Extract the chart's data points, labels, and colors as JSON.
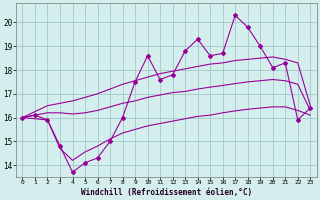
{
  "x": [
    0,
    1,
    2,
    3,
    4,
    5,
    6,
    7,
    8,
    9,
    10,
    11,
    12,
    13,
    14,
    15,
    16,
    17,
    18,
    19,
    20,
    21,
    22,
    23
  ],
  "line_main": [
    16.0,
    16.1,
    15.9,
    14.8,
    13.7,
    14.1,
    14.3,
    15.0,
    16.0,
    17.5,
    18.6,
    17.6,
    17.8,
    18.8,
    19.3,
    18.6,
    18.7,
    20.3,
    19.8,
    19.0,
    18.1,
    18.3,
    15.9,
    16.4
  ],
  "line_upper": [
    16.0,
    16.25,
    16.5,
    16.6,
    16.7,
    16.85,
    17.0,
    17.2,
    17.4,
    17.55,
    17.7,
    17.85,
    17.95,
    18.05,
    18.15,
    18.25,
    18.3,
    18.4,
    18.45,
    18.5,
    18.55,
    18.45,
    18.3,
    16.5
  ],
  "line_mid": [
    16.0,
    16.1,
    16.2,
    16.2,
    16.15,
    16.2,
    16.3,
    16.45,
    16.6,
    16.7,
    16.85,
    16.95,
    17.05,
    17.1,
    17.2,
    17.28,
    17.35,
    17.43,
    17.5,
    17.55,
    17.6,
    17.55,
    17.4,
    16.3
  ],
  "line_lower": [
    16.0,
    15.95,
    15.9,
    14.7,
    14.2,
    14.55,
    14.8,
    15.1,
    15.35,
    15.5,
    15.65,
    15.75,
    15.85,
    15.95,
    16.05,
    16.1,
    16.2,
    16.28,
    16.35,
    16.4,
    16.45,
    16.45,
    16.3,
    16.1
  ],
  "color": "#990099",
  "bg_color": "#d4eeee",
  "grid_color": "#a0c8c8",
  "xlabel": "Windchill (Refroidissement éolien,°C)",
  "yticks": [
    14,
    15,
    16,
    17,
    18,
    19,
    20
  ],
  "xticks": [
    0,
    1,
    2,
    3,
    4,
    5,
    6,
    7,
    8,
    9,
    10,
    11,
    12,
    13,
    14,
    15,
    16,
    17,
    18,
    19,
    20,
    21,
    22,
    23
  ],
  "ylim": [
    13.5,
    20.8
  ],
  "xlim": [
    -0.5,
    23.5
  ]
}
